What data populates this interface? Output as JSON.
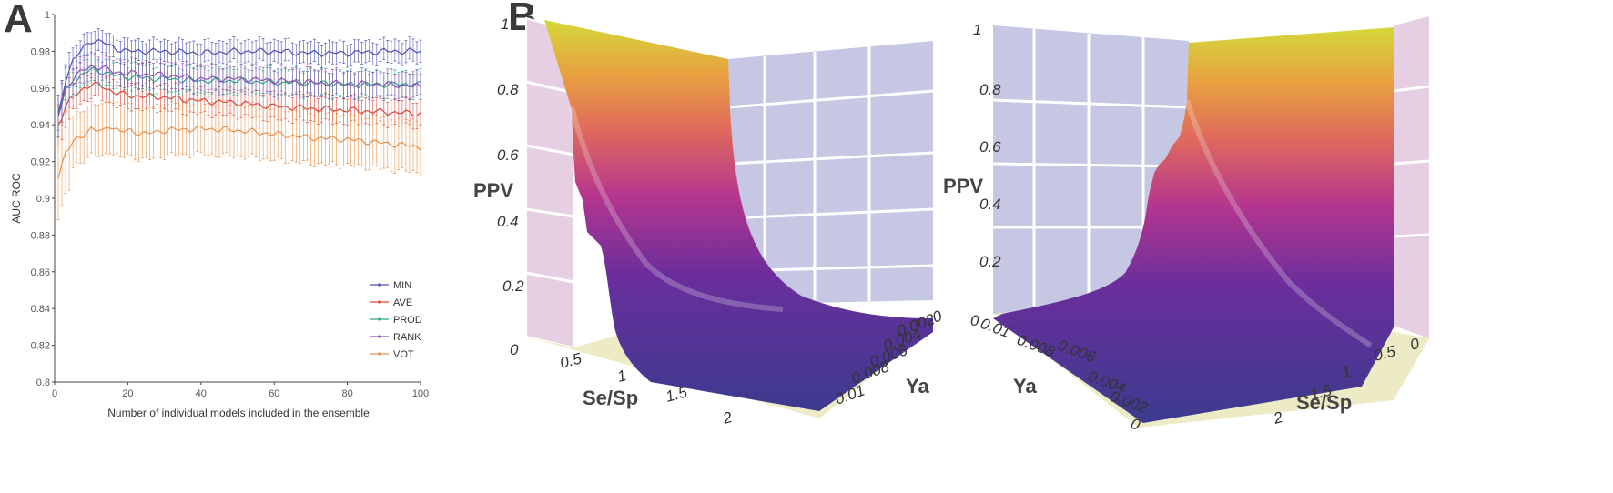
{
  "panels": {
    "a": "A",
    "b": "B"
  },
  "chart_data": [
    {
      "type": "line",
      "ylabel": "AUC ROC",
      "xlabel": "Number of individual models included in the ensemble",
      "xlim": [
        0,
        100
      ],
      "ylim": [
        0.8,
        1
      ],
      "x_ticks": [
        0,
        20,
        40,
        60,
        80,
        100
      ],
      "y_ticks": [
        "0.8",
        "0.82",
        "0.84",
        "0.86",
        "0.88",
        "0.9",
        "0.92",
        "0.94",
        "0.96",
        "0.98",
        "1"
      ],
      "legend_position": "bottom-right",
      "error_bars": true,
      "series": [
        {
          "name": "MIN",
          "color": "#4a52b0",
          "anchors": [
            [
              1,
              0.945
            ],
            [
              3,
              0.965
            ],
            [
              5,
              0.975
            ],
            [
              8,
              0.982
            ],
            [
              10,
              0.986
            ],
            [
              13,
              0.985
            ],
            [
              16,
              0.982
            ],
            [
              20,
              0.98
            ],
            [
              25,
              0.98
            ],
            [
              30,
              0.98
            ],
            [
              40,
              0.979
            ],
            [
              50,
              0.98
            ],
            [
              60,
              0.98
            ],
            [
              70,
              0.979
            ],
            [
              80,
              0.979
            ],
            [
              90,
              0.98
            ],
            [
              100,
              0.98
            ]
          ],
          "err": 0.006
        },
        {
          "name": "AVE",
          "color": "#d9453a",
          "anchors": [
            [
              1,
              0.94
            ],
            [
              3,
              0.95
            ],
            [
              5,
              0.955
            ],
            [
              8,
              0.96
            ],
            [
              10,
              0.962
            ],
            [
              13,
              0.961
            ],
            [
              16,
              0.958
            ],
            [
              20,
              0.956
            ],
            [
              30,
              0.955
            ],
            [
              40,
              0.953
            ],
            [
              50,
              0.952
            ],
            [
              60,
              0.95
            ],
            [
              70,
              0.949
            ],
            [
              80,
              0.948
            ],
            [
              90,
              0.947
            ],
            [
              100,
              0.946
            ]
          ],
          "err": 0.007
        },
        {
          "name": "PROD",
          "color": "#2fa58a",
          "anchors": [
            [
              1,
              0.945
            ],
            [
              3,
              0.958
            ],
            [
              5,
              0.963
            ],
            [
              8,
              0.968
            ],
            [
              10,
              0.97
            ],
            [
              13,
              0.969
            ],
            [
              16,
              0.967
            ],
            [
              20,
              0.966
            ],
            [
              30,
              0.965
            ],
            [
              40,
              0.964
            ],
            [
              50,
              0.964
            ],
            [
              60,
              0.963
            ],
            [
              70,
              0.963
            ],
            [
              80,
              0.962
            ],
            [
              90,
              0.962
            ],
            [
              100,
              0.962
            ]
          ],
          "err": 0.007
        },
        {
          "name": "RANK",
          "color": "#8a4fb5",
          "anchors": [
            [
              1,
              0.945
            ],
            [
              3,
              0.96
            ],
            [
              5,
              0.965
            ],
            [
              8,
              0.97
            ],
            [
              10,
              0.972
            ],
            [
              13,
              0.971
            ],
            [
              16,
              0.969
            ],
            [
              20,
              0.968
            ],
            [
              30,
              0.967
            ],
            [
              40,
              0.965
            ],
            [
              50,
              0.965
            ],
            [
              60,
              0.964
            ],
            [
              70,
              0.963
            ],
            [
              80,
              0.962
            ],
            [
              90,
              0.962
            ],
            [
              100,
              0.961
            ]
          ],
          "err": 0.007
        },
        {
          "name": "VOT",
          "color": "#e8904a",
          "anchors": [
            [
              1,
              0.912
            ],
            [
              3,
              0.925
            ],
            [
              5,
              0.93
            ],
            [
              8,
              0.935
            ],
            [
              10,
              0.938
            ],
            [
              13,
              0.936
            ],
            [
              15,
              0.94
            ],
            [
              18,
              0.936
            ],
            [
              20,
              0.937
            ],
            [
              25,
              0.935
            ],
            [
              30,
              0.937
            ],
            [
              40,
              0.938
            ],
            [
              50,
              0.937
            ],
            [
              60,
              0.935
            ],
            [
              70,
              0.933
            ],
            [
              80,
              0.932
            ],
            [
              90,
              0.93
            ],
            [
              100,
              0.928
            ]
          ],
          "err": 0.014
        }
      ]
    },
    {
      "type": "surface3d",
      "zlabel": "PPV",
      "xlabel": "Se/Sp",
      "ylabel": "Ya",
      "z_ticks": [
        "0",
        "0.2",
        "0.4",
        "0.6",
        "0.8",
        "1"
      ],
      "x_ticks": [
        "0.5",
        "1",
        "1.5",
        "2"
      ],
      "y_ticks": [
        "0",
        "0.002",
        "0.004",
        "0.006",
        "0.008",
        "0.01"
      ],
      "colormap": [
        "#3b3b8f",
        "#7a2fa0",
        "#c4398a",
        "#e56b5a",
        "#e9a640",
        "#d6d93a"
      ]
    },
    {
      "type": "surface3d",
      "zlabel": "PPV",
      "xlabel": "Se/Sp",
      "ylabel": "Ya",
      "z_ticks": [
        "0",
        "0.2",
        "0.4",
        "0.6",
        "0.8",
        "1"
      ],
      "x_ticks": [
        "0",
        "0.5",
        "1",
        "1.5",
        "2"
      ],
      "y_ticks": [
        "0",
        "0.002",
        "0.004",
        "0.006",
        "0.008",
        "0.01"
      ],
      "colormap": [
        "#3b3b8f",
        "#7a2fa0",
        "#c4398a",
        "#e56b5a",
        "#e9a640",
        "#d6d93a"
      ]
    }
  ]
}
